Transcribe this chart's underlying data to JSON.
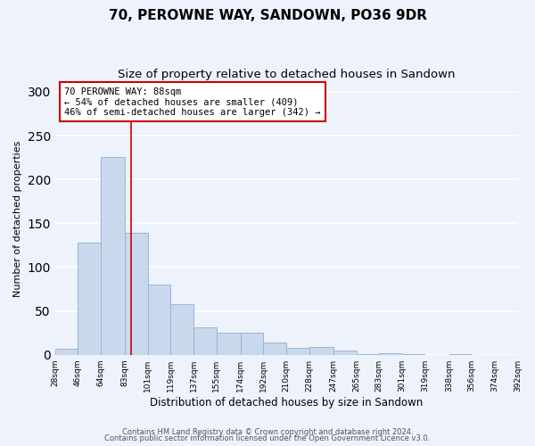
{
  "title": "70, PEROWNE WAY, SANDOWN, PO36 9DR",
  "subtitle": "Size of property relative to detached houses in Sandown",
  "xlabel": "Distribution of detached houses by size in Sandown",
  "ylabel": "Number of detached properties",
  "bin_edges": [
    28,
    46,
    64,
    83,
    101,
    119,
    137,
    155,
    174,
    192,
    210,
    228,
    247,
    265,
    283,
    301,
    319,
    338,
    356,
    374,
    392
  ],
  "bar_heights": [
    7,
    128,
    226,
    139,
    80,
    58,
    31,
    25,
    25,
    14,
    8,
    9,
    5,
    1,
    2,
    1,
    0,
    1,
    0,
    0
  ],
  "bar_color": "#c9d9ed",
  "bar_edge_color": "#9ab5d0",
  "property_line_x": 88,
  "property_line_color": "#cc0000",
  "annotation_box_text": "70 PEROWNE WAY: 88sqm\n← 54% of detached houses are smaller (409)\n46% of semi-detached houses are larger (342) →",
  "annotation_box_color": "#cc0000",
  "annotation_box_fill": "#ffffff",
  "tick_labels": [
    "28sqm",
    "46sqm",
    "64sqm",
    "83sqm",
    "101sqm",
    "119sqm",
    "137sqm",
    "155sqm",
    "174sqm",
    "192sqm",
    "210sqm",
    "228sqm",
    "247sqm",
    "265sqm",
    "283sqm",
    "301sqm",
    "319sqm",
    "338sqm",
    "356sqm",
    "374sqm",
    "392sqm"
  ],
  "ylim": [
    0,
    310
  ],
  "yticks": [
    0,
    50,
    100,
    150,
    200,
    250,
    300
  ],
  "footnote1": "Contains HM Land Registry data © Crown copyright and database right 2024.",
  "footnote2": "Contains public sector information licensed under the Open Government Licence v3.0.",
  "background_color": "#eef2fa",
  "grid_color": "#ffffff",
  "title_fontsize": 11,
  "subtitle_fontsize": 9.5
}
